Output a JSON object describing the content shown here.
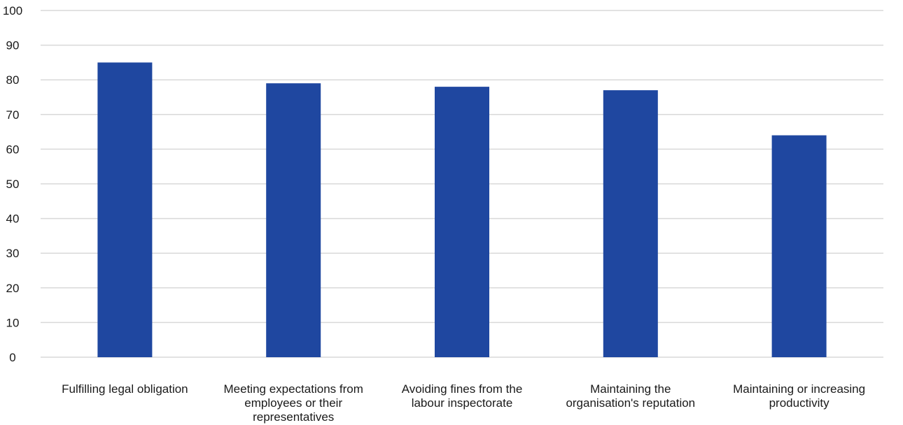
{
  "chart_data": {
    "type": "bar",
    "title": "",
    "xlabel": "",
    "ylabel": "",
    "categories": [
      [
        "Fulfilling legal obligation"
      ],
      [
        "Meeting expectations from",
        "employees or their",
        "representatives"
      ],
      [
        "Avoiding fines from the",
        "labour inspectorate"
      ],
      [
        "Maintaining the",
        "organisation's reputation"
      ],
      [
        "Maintaining or increasing",
        "productivity"
      ]
    ],
    "values": [
      85,
      79,
      78,
      77,
      64
    ],
    "ylim": [
      0,
      100
    ],
    "yticks": [
      0,
      10,
      20,
      30,
      40,
      50,
      60,
      70,
      80,
      90,
      100
    ],
    "grid": true,
    "legend": "none",
    "colors": {
      "bar": "#1f47a0",
      "grid": "#d9d9d9",
      "text": "#1a1a1a"
    }
  }
}
